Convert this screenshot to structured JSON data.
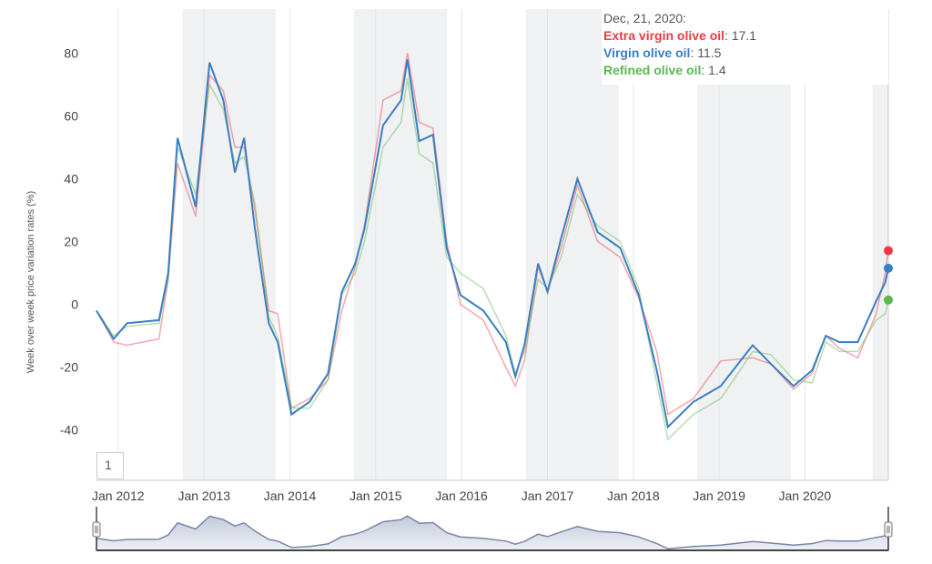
{
  "chart_data": {
    "type": "line",
    "ylabel": "Week over week price variation rates (%)",
    "xlabel": "",
    "ylim": [
      -56,
      94
    ],
    "xlim": [
      "2011-10-01",
      "2020-12-21"
    ],
    "yticks": [
      80,
      60,
      40,
      20,
      0,
      -20,
      -40
    ],
    "xticks": [
      {
        "date": "2012-01-01",
        "label": "Jan 2012"
      },
      {
        "date": "2013-01-01",
        "label": "Jan 2013"
      },
      {
        "date": "2014-01-01",
        "label": "Jan 2014"
      },
      {
        "date": "2015-01-01",
        "label": "Jan 2015"
      },
      {
        "date": "2016-01-01",
        "label": "Jan 2016"
      },
      {
        "date": "2017-01-01",
        "label": "Jan 2017"
      },
      {
        "date": "2018-01-01",
        "label": "Jan 2018"
      },
      {
        "date": "2019-01-01",
        "label": "Jan 2019"
      },
      {
        "date": "2020-01-01",
        "label": "Jan 2020"
      }
    ],
    "grid": true,
    "bands": [
      [
        "2012-10-01",
        "2013-11-01"
      ],
      [
        "2014-10-01",
        "2015-11-01"
      ],
      [
        "2016-10-01",
        "2017-11-01"
      ],
      [
        "2018-10-01",
        "2019-11-01"
      ],
      [
        "2020-10-15",
        "2020-12-21"
      ]
    ],
    "band_color": "#f0f1f3",
    "dates": [
      "2011-10-01",
      "2011-12-13",
      "2012-02-08",
      "2012-06-23",
      "2012-08-01",
      "2012-09-10",
      "2012-11-26",
      "2013-01-24",
      "2013-03-24",
      "2013-05-12",
      "2013-06-20",
      "2013-08-05",
      "2013-10-03",
      "2013-11-10",
      "2014-01-08",
      "2014-03-26",
      "2014-06-12",
      "2014-08-10",
      "2014-10-06",
      "2014-11-14",
      "2015-02-01",
      "2015-04-19",
      "2015-05-16",
      "2015-07-05",
      "2015-09-02",
      "2015-10-30",
      "2015-12-27",
      "2016-04-03",
      "2016-07-08",
      "2016-08-17",
      "2016-09-25",
      "2016-11-22",
      "2017-01-01",
      "2017-02-28",
      "2017-05-08",
      "2017-08-02",
      "2017-11-06",
      "2018-01-24",
      "2018-04-11",
      "2018-05-28",
      "2018-09-14",
      "2019-01-08",
      "2019-05-24",
      "2019-08-10",
      "2019-11-14",
      "2020-02-01",
      "2020-03-30",
      "2020-05-27",
      "2020-08-13",
      "2020-10-30",
      "2020-12-08",
      "2020-12-21"
    ],
    "series": [
      {
        "name": "Extra virgin olive oil",
        "color": "#ee3a43",
        "values": [
          -2,
          -12,
          -13,
          -11,
          8,
          45,
          28,
          73,
          68,
          50,
          50,
          30,
          -2,
          -3,
          -33,
          -30,
          -24,
          -2,
          12,
          25,
          65,
          68,
          80,
          58,
          56,
          20,
          0,
          -5,
          -20,
          -26,
          -18,
          12,
          4,
          18,
          38,
          20,
          15,
          2,
          -15,
          -35,
          -30,
          -18,
          -17,
          -19,
          -27,
          -22,
          -10,
          -14,
          -17,
          -3,
          10,
          17.1
        ]
      },
      {
        "name": "Virgin olive oil",
        "color": "#3a7fc2",
        "values": [
          -2,
          -11,
          -6,
          -5,
          10,
          53,
          31,
          77,
          65,
          42,
          53,
          24,
          -6,
          -12,
          -35,
          -31,
          -22,
          4,
          13,
          24,
          57,
          65,
          78,
          52,
          54,
          18,
          3,
          -2,
          -12,
          -23,
          -13,
          13,
          4,
          21,
          40,
          23,
          18,
          3,
          -21,
          -39,
          -31,
          -26,
          -13,
          -19,
          -26,
          -21,
          -10,
          -12,
          -12,
          1,
          7,
          11.5
        ]
      },
      {
        "name": "Refined olive oil",
        "color": "#5bb84f",
        "values": [
          -2,
          -10,
          -7,
          -6,
          8,
          50,
          35,
          70,
          62,
          45,
          47,
          32,
          -4,
          -10,
          -33,
          -33,
          -24,
          3,
          10,
          20,
          50,
          58,
          72,
          48,
          45,
          15,
          10,
          5,
          -10,
          -22,
          -15,
          8,
          5,
          15,
          35,
          25,
          20,
          5,
          -25,
          -43,
          -35,
          -30,
          -15,
          -16,
          -24,
          -25,
          -12,
          -15,
          -15,
          -5,
          -3,
          1.4
        ]
      }
    ],
    "tooltip": {
      "date": "Dec, 21, 2020:",
      "value_strs": [
        "17.1",
        "11.5",
        "1.4"
      ]
    }
  },
  "range_selector": {
    "label": "1"
  }
}
